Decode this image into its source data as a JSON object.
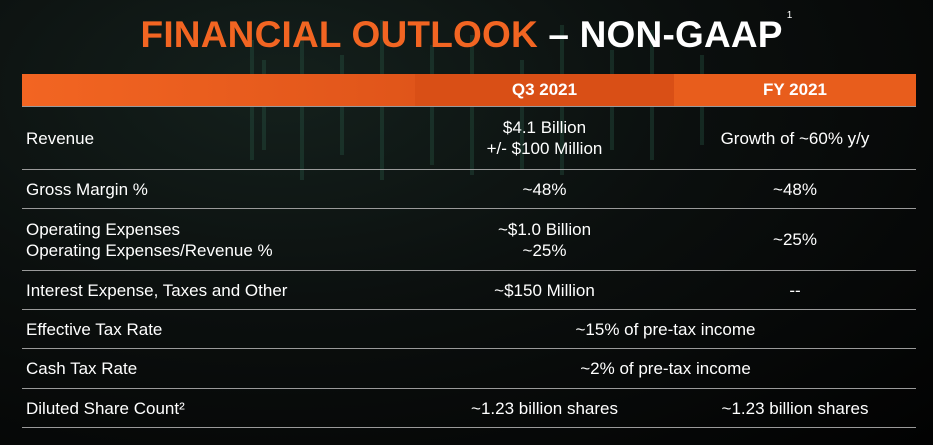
{
  "title": {
    "part1": "FINANCIAL OUTLOOK",
    "part2": "– NON-GAAP",
    "footnote": "1"
  },
  "colors": {
    "accent": "#f26522",
    "header_q3": "#d94f16",
    "header_fy": "#e85d1c",
    "background": "#000000",
    "rule": "#9a9a9a"
  },
  "table": {
    "headers": [
      "",
      "Q3 2021",
      "FY 2021"
    ],
    "rows": {
      "revenue": {
        "label": "Revenue",
        "q3_line1": "$4.1 Billion",
        "q3_line2": "+/- $100 Million",
        "fy": "Growth of ~60% y/y"
      },
      "gross_margin": {
        "label": "Gross Margin %",
        "q3": "~48%",
        "fy": "~48%"
      },
      "opex": {
        "label_line1": "Operating Expenses",
        "label_line2": "Operating Expenses/Revenue %",
        "q3_line1": "~$1.0 Billion",
        "q3_line2": "~25%",
        "fy": "~25%"
      },
      "interest": {
        "label": "Interest Expense, Taxes and Other",
        "q3": "~$150 Million",
        "fy": "--"
      },
      "effective_tax": {
        "label": "Effective Tax Rate",
        "value": "~15% of pre-tax income"
      },
      "cash_tax": {
        "label": "Cash Tax Rate",
        "value": "~2% of pre-tax income"
      },
      "diluted_shares": {
        "label": "Diluted Share Count²",
        "q3": "~1.23 billion shares",
        "fy": "~1.23 billion shares"
      }
    }
  }
}
